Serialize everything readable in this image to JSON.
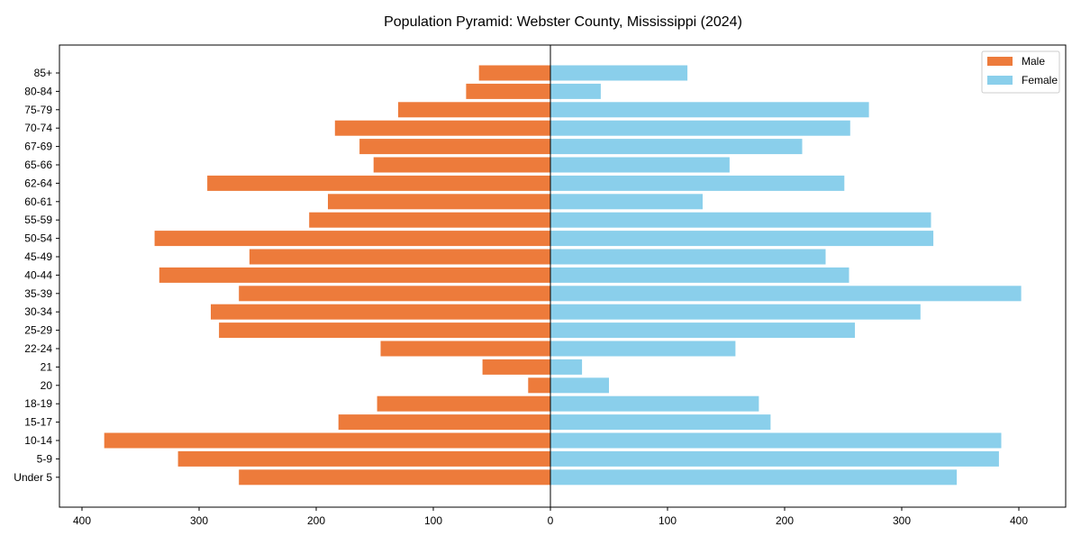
{
  "chart_data": {
    "type": "bar",
    "orientation": "horizontal",
    "title": "Population Pyramid: Webster County, Mississippi (2024)",
    "xlabel": "",
    "ylabel": "",
    "xlim": [
      -400,
      400
    ],
    "xticks": [
      -400,
      -300,
      -200,
      -100,
      0,
      100,
      200,
      300,
      400
    ],
    "xtick_labels": [
      "400",
      "300",
      "200",
      "100",
      "0",
      "100",
      "200",
      "300",
      "400"
    ],
    "categories": [
      "85+",
      "80-84",
      "75-79",
      "70-74",
      "67-69",
      "65-66",
      "62-64",
      "60-61",
      "55-59",
      "50-54",
      "45-49",
      "40-44",
      "35-39",
      "30-34",
      "25-29",
      "22-24",
      "21",
      "20",
      "18-19",
      "15-17",
      "10-14",
      "5-9",
      "Under 5"
    ],
    "series": [
      {
        "name": "Male",
        "color": "#ED7B3B",
        "values": [
          61,
          72,
          130,
          184,
          163,
          151,
          293,
          190,
          206,
          338,
          257,
          334,
          266,
          290,
          283,
          145,
          58,
          19,
          148,
          181,
          381,
          318,
          266
        ]
      },
      {
        "name": "Female",
        "color": "#8ACFEB",
        "values": [
          117,
          43,
          272,
          256,
          215,
          153,
          251,
          130,
          325,
          327,
          235,
          255,
          402,
          316,
          260,
          158,
          27,
          50,
          178,
          188,
          385,
          383,
          347
        ]
      }
    ],
    "legend": {
      "position": "top-right"
    },
    "grid": false
  }
}
